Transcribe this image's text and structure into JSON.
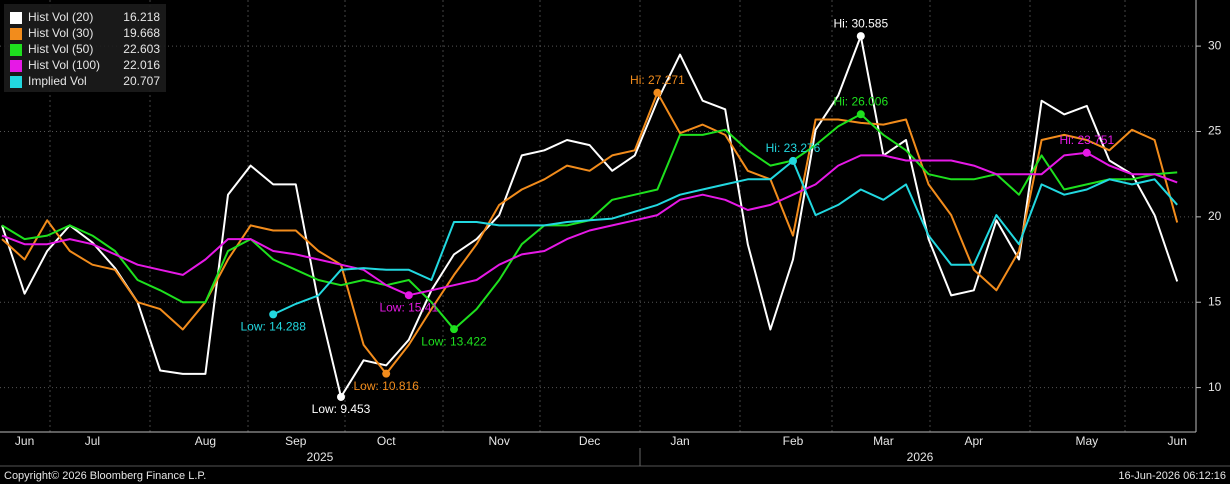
{
  "chart_data": {
    "type": "line",
    "categories": [
      null,
      "Jun",
      null,
      null,
      "Jul",
      null,
      null,
      null,
      null,
      "Aug",
      null,
      null,
      null,
      "Sep",
      null,
      null,
      null,
      "Oct",
      null,
      null,
      null,
      null,
      "Nov",
      null,
      null,
      null,
      "Dec",
      null,
      null,
      null,
      "Jan",
      null,
      null,
      null,
      null,
      "Feb",
      null,
      null,
      null,
      "Mar",
      null,
      null,
      null,
      "Apr",
      null,
      null,
      null,
      null,
      "May",
      null,
      null,
      null,
      "Jun"
    ],
    "year_labels": [
      "2025",
      "2026"
    ],
    "ylim": [
      7.4,
      32.7
    ],
    "yticks": [
      10,
      15,
      20,
      25,
      30
    ],
    "grid": true,
    "legend": "top-left",
    "series": [
      {
        "name": "Hist Vol (20)",
        "legend_value": "16.218",
        "color": "#ffffff",
        "values": [
          19.5,
          15.5,
          18,
          19.5,
          18.5,
          17,
          15,
          11,
          10.8,
          10.8,
          21.3,
          23,
          21.9,
          21.9,
          15,
          9.453,
          11.6,
          11.3,
          12.8,
          15.7,
          17.8,
          18.7,
          20.1,
          23.6,
          23.9,
          24.5,
          24.2,
          22.7,
          23.6,
          26.8,
          29.5,
          26.8,
          26.3,
          18.4,
          13.4,
          17.5,
          25.1,
          27.1,
          30.585,
          23.6,
          24.5,
          18.7,
          15.4,
          15.7,
          19.8,
          17.5,
          26.8,
          26,
          26.5,
          23.3,
          22.5,
          20.1,
          16.218
        ]
      },
      {
        "name": "Hist Vol (30)",
        "legend_value": "19.668",
        "color": "#f28c1c",
        "values": [
          18.7,
          17.5,
          19.8,
          18,
          17.2,
          16.9,
          15,
          14.6,
          13.4,
          15,
          17.5,
          19.5,
          19.2,
          19.2,
          18,
          17.2,
          12.5,
          10.816,
          12.5,
          14.6,
          16.6,
          18.4,
          20.7,
          21.6,
          22.2,
          23,
          22.7,
          23.6,
          23.9,
          27.271,
          24.9,
          25.4,
          24.8,
          22.7,
          22.2,
          18.9,
          25.7,
          25.7,
          25.5,
          25.4,
          25.7,
          21.9,
          20.1,
          16.9,
          15.7,
          18,
          24.5,
          24.8,
          24.5,
          23.9,
          25.1,
          24.5,
          19.668
        ]
      },
      {
        "name": "Hist Vol (50)",
        "legend_value": "22.603",
        "color": "#1ee01e",
        "values": [
          19.5,
          18.7,
          18.9,
          19.5,
          18.9,
          18,
          16.3,
          15.7,
          15,
          15,
          18,
          18.7,
          17.5,
          16.9,
          16.3,
          16,
          16.3,
          16,
          16.3,
          15,
          13.422,
          14.6,
          16.3,
          18.4,
          19.5,
          19.5,
          19.8,
          21,
          21.3,
          21.6,
          24.8,
          24.8,
          25.1,
          23.9,
          23,
          23.3,
          24.2,
          25.3,
          26.006,
          24.8,
          23.9,
          22.5,
          22.2,
          22.2,
          22.5,
          21.3,
          23.6,
          21.6,
          21.9,
          22.2,
          22.2,
          22.5,
          22.603
        ]
      },
      {
        "name": "Hist Vol (100)",
        "legend_value": "22.016",
        "color": "#e619e6",
        "values": [
          18.9,
          18.4,
          18.4,
          18.7,
          18.4,
          17.8,
          17.2,
          16.9,
          16.6,
          17.5,
          18.7,
          18.7,
          18,
          17.8,
          17.5,
          17.2,
          16.9,
          16,
          15.41,
          15.7,
          16,
          16.3,
          17.2,
          17.8,
          18,
          18.7,
          19.2,
          19.5,
          19.8,
          20.1,
          21,
          21.3,
          21,
          20.4,
          20.7,
          21.3,
          21.9,
          23,
          23.6,
          23.6,
          23.3,
          23.3,
          23.3,
          23,
          22.5,
          22.5,
          22.5,
          23.6,
          23.751,
          23,
          22.5,
          22.5,
          22.016
        ]
      },
      {
        "name": "Implied Vol",
        "legend_value": "20.707",
        "color": "#22d8e0",
        "values": [
          null,
          null,
          null,
          null,
          null,
          null,
          null,
          null,
          null,
          null,
          null,
          null,
          14.288,
          14.9,
          15.4,
          16.9,
          17,
          16.9,
          16.9,
          16.3,
          19.7,
          19.7,
          19.5,
          19.5,
          19.5,
          19.7,
          19.8,
          19.9,
          20.3,
          20.7,
          21.3,
          21.6,
          21.9,
          22.2,
          22.2,
          23.276,
          20.1,
          20.7,
          21.6,
          21,
          21.9,
          18.9,
          17.2,
          17.2,
          20.1,
          18.4,
          21.9,
          21.3,
          21.6,
          22.2,
          21.9,
          22.2,
          20.707
        ]
      }
    ],
    "annotations": [
      {
        "series": 0,
        "index": 15,
        "label": "Low: 9.453",
        "position": "below"
      },
      {
        "series": 0,
        "index": 38,
        "label": "Hi: 30.585",
        "position": "above"
      },
      {
        "series": 1,
        "index": 17,
        "label": "Low: 10.816",
        "position": "below"
      },
      {
        "series": 1,
        "index": 29,
        "label": "Hi: 27.271",
        "position": "above"
      },
      {
        "series": 2,
        "index": 20,
        "label": "Low: 13.422",
        "position": "below"
      },
      {
        "series": 2,
        "index": 38,
        "label": "Hi: 26.006",
        "position": "above"
      },
      {
        "series": 3,
        "index": 18,
        "label": "Low: 15.41",
        "position": "below"
      },
      {
        "series": 3,
        "index": 48,
        "label": "Hi: 23.751",
        "position": "above"
      },
      {
        "series": 4,
        "index": 12,
        "label": "Low: 14.288",
        "position": "below"
      },
      {
        "series": 4,
        "index": 35,
        "label": "Hi: 23.276",
        "position": "above"
      }
    ]
  },
  "footer": {
    "copyright": "Copyright© 2026 Bloomberg Finance L.P.",
    "timestamp": "16-Jun-2026 06:12:16"
  }
}
